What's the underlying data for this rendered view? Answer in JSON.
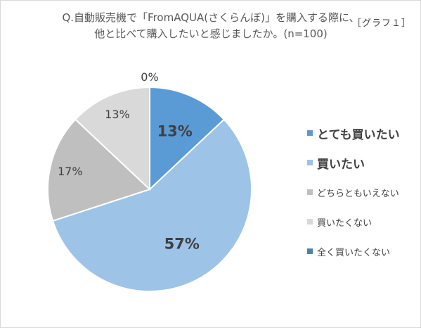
{
  "title": {
    "line1": "Q.自動販売機で「FromAQUA(さくらんぼ)」を購入する際に、",
    "line2": "他と比べて購入したいと感じましたか。(n=100)"
  },
  "figure_label": "［グラフ１］",
  "colors": {
    "series": [
      "#5b9bd5",
      "#9dc3e6",
      "#bfbfbf",
      "#d9d9d9",
      "#4f81a7"
    ],
    "label_text": "#404040",
    "slice_border": "#ffffff"
  },
  "chart_data": {
    "type": "pie",
    "title": "Q.自動販売機で「FromAQUA(さくらんぼ)」を購入する際に、他と比べて購入したいと感じましたか。(n=100)",
    "categories": [
      "とても買いたい",
      "買いたい",
      "どちらともいえない",
      "買いたくない",
      "全く買いたくない"
    ],
    "values": [
      13,
      57,
      17,
      13,
      0
    ],
    "data_labels": [
      "13%",
      "57%",
      "17%",
      "13%",
      "0%"
    ],
    "label_bold": [
      true,
      true,
      false,
      false,
      false
    ],
    "legend_position": "right",
    "start_angle": "12 o'clock",
    "direction": "clockwise"
  }
}
